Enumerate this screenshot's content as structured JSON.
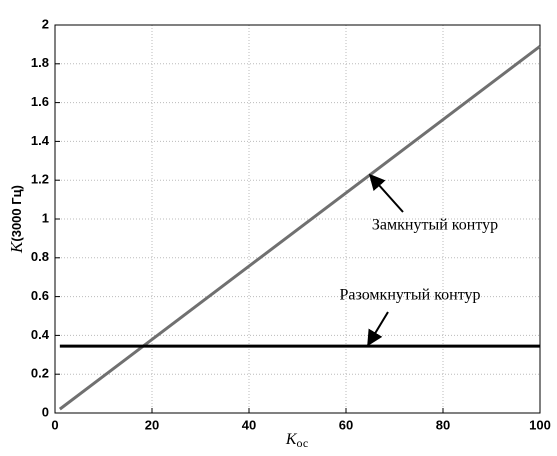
{
  "chart_data": {
    "type": "line",
    "xlabel_symbol": "K",
    "xlabel_subscript": "ос",
    "ylabel_symbol": "K",
    "ylabel_rest": "(3000 Гц)",
    "x": [
      1,
      100
    ],
    "series": [
      {
        "name": "Замкнутый контур",
        "color": "#707070",
        "values": [
          0.02,
          1.89
        ]
      },
      {
        "name": "Разомкнутый контур",
        "color": "#000000",
        "values": [
          0.345,
          0.345
        ]
      }
    ],
    "xlim": [
      0,
      100
    ],
    "xticks": [
      0,
      20,
      40,
      60,
      80,
      100
    ],
    "ylim": [
      0,
      2
    ],
    "yticks": [
      0,
      0.2,
      0.4,
      0.6,
      0.8,
      1,
      1.2,
      1.4,
      1.6,
      1.8,
      2
    ],
    "grid": true
  }
}
